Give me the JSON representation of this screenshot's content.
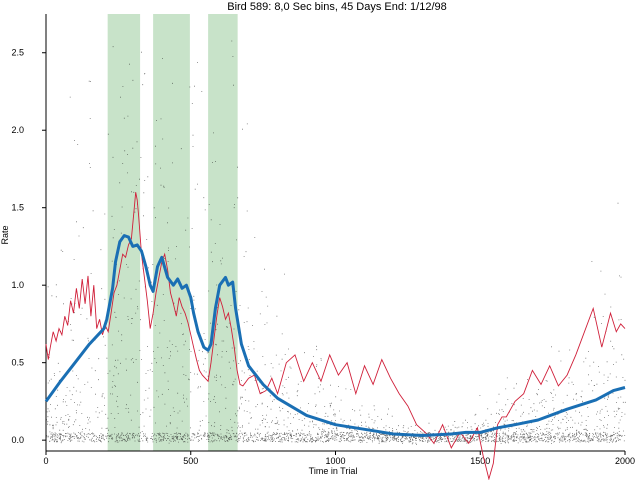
{
  "chart_data": {
    "type": "scatter",
    "title": "Bird 589: 8,0 Sec bins, 45 Days End: 1/12/98",
    "xlabel": "Time in Trial",
    "ylabel": "Rate",
    "xlim": [
      0,
      2000
    ],
    "ylim": [
      -0.07,
      2.75
    ],
    "x_ticks": [
      0,
      500,
      1000,
      1500,
      2000
    ],
    "x_tick_labels": [
      "0",
      "500",
      "1000",
      "1500",
      "2000"
    ],
    "y_ticks": [
      0.0,
      0.5,
      1.0,
      1.5,
      2.0,
      2.5
    ],
    "y_tick_labels": [
      "0.0",
      "0.5",
      "1.0",
      "1.5",
      "2.0",
      "2.5"
    ],
    "shaded_intervals": [
      [
        213,
        325
      ],
      [
        370,
        497
      ],
      [
        560,
        662
      ]
    ],
    "colors": {
      "shade": "#c8e3c9",
      "smooth": "#1a6fb4",
      "raw": "#d0203a",
      "scatter": "#222222"
    },
    "series": [
      {
        "style": "thick-blue-smoothed",
        "x": [
          0,
          50,
          100,
          150,
          180,
          200,
          210,
          230,
          240,
          255,
          270,
          285,
          300,
          315,
          330,
          345,
          360,
          370,
          385,
          400,
          420,
          440,
          455,
          470,
          485,
          500,
          510,
          525,
          545,
          560,
          570,
          585,
          600,
          620,
          630,
          645,
          655,
          675,
          700,
          750,
          800,
          900,
          1000,
          1100,
          1200,
          1300,
          1400,
          1450,
          1500,
          1560,
          1620,
          1700,
          1800,
          1900,
          1960,
          2000
        ],
        "y": [
          0.25,
          0.38,
          0.5,
          0.62,
          0.68,
          0.72,
          0.78,
          0.98,
          1.15,
          1.28,
          1.32,
          1.31,
          1.25,
          1.26,
          1.22,
          1.12,
          1.0,
          0.96,
          1.12,
          1.18,
          1.05,
          1.0,
          1.04,
          0.98,
          1.0,
          0.92,
          0.82,
          0.7,
          0.6,
          0.58,
          0.62,
          0.85,
          1.0,
          1.05,
          1.0,
          1.02,
          0.85,
          0.62,
          0.48,
          0.36,
          0.27,
          0.16,
          0.1,
          0.07,
          0.04,
          0.03,
          0.04,
          0.05,
          0.05,
          0.08,
          0.1,
          0.13,
          0.2,
          0.26,
          0.32,
          0.34
        ]
      },
      {
        "style": "thin-red-raw",
        "x": [
          0,
          8,
          15,
          25,
          35,
          45,
          55,
          65,
          75,
          85,
          95,
          105,
          115,
          125,
          135,
          145,
          155,
          165,
          175,
          185,
          195,
          205,
          215,
          225,
          235,
          245,
          255,
          265,
          275,
          285,
          295,
          305,
          310,
          315,
          320,
          330,
          340,
          350,
          360,
          370,
          380,
          390,
          400,
          410,
          420,
          430,
          440,
          450,
          460,
          470,
          480,
          490,
          500,
          510,
          520,
          530,
          540,
          550,
          560,
          570,
          580,
          590,
          600,
          610,
          620,
          630,
          640,
          650,
          660,
          670,
          680,
          700,
          720,
          740,
          760,
          780,
          800,
          830,
          860,
          890,
          920,
          950,
          980,
          1010,
          1040,
          1070,
          1100,
          1130,
          1160,
          1190,
          1220,
          1250,
          1280,
          1310,
          1340,
          1370,
          1400,
          1430,
          1460,
          1490,
          1510,
          1530,
          1545,
          1560,
          1575,
          1590,
          1620,
          1650,
          1680,
          1710,
          1740,
          1770,
          1800,
          1830,
          1860,
          1890,
          1920,
          1950,
          1970,
          1985,
          2000
        ],
        "y": [
          0.62,
          0.52,
          0.6,
          0.7,
          0.64,
          0.72,
          0.68,
          0.8,
          0.74,
          0.9,
          0.82,
          0.98,
          0.85,
          1.04,
          0.88,
          1.06,
          0.8,
          1.0,
          0.72,
          0.78,
          0.68,
          0.74,
          0.7,
          0.82,
          0.95,
          1.0,
          1.1,
          1.2,
          1.18,
          1.26,
          1.3,
          1.5,
          1.6,
          1.55,
          1.45,
          1.2,
          1.05,
          0.9,
          0.72,
          0.82,
          0.95,
          1.05,
          1.15,
          1.2,
          1.1,
          0.95,
          0.88,
          0.8,
          0.92,
          0.86,
          0.82,
          0.76,
          0.68,
          0.6,
          0.52,
          0.45,
          0.42,
          0.4,
          0.38,
          0.5,
          0.65,
          0.8,
          0.92,
          0.86,
          0.78,
          0.82,
          0.72,
          0.6,
          0.45,
          0.36,
          0.35,
          0.4,
          0.42,
          0.3,
          0.32,
          0.4,
          0.3,
          0.5,
          0.55,
          0.38,
          0.5,
          0.38,
          0.55,
          0.42,
          0.5,
          0.3,
          0.48,
          0.36,
          0.52,
          0.4,
          0.3,
          0.22,
          0.1,
          0.05,
          -0.02,
          0.1,
          -0.05,
          0.05,
          -0.02,
          0.08,
          -0.1,
          -0.25,
          -0.15,
          0.1,
          0.15,
          0.15,
          0.25,
          0.3,
          0.45,
          0.36,
          0.48,
          0.35,
          0.42,
          0.55,
          0.7,
          0.85,
          0.6,
          0.82,
          0.7,
          0.75,
          0.72
        ]
      }
    ]
  }
}
